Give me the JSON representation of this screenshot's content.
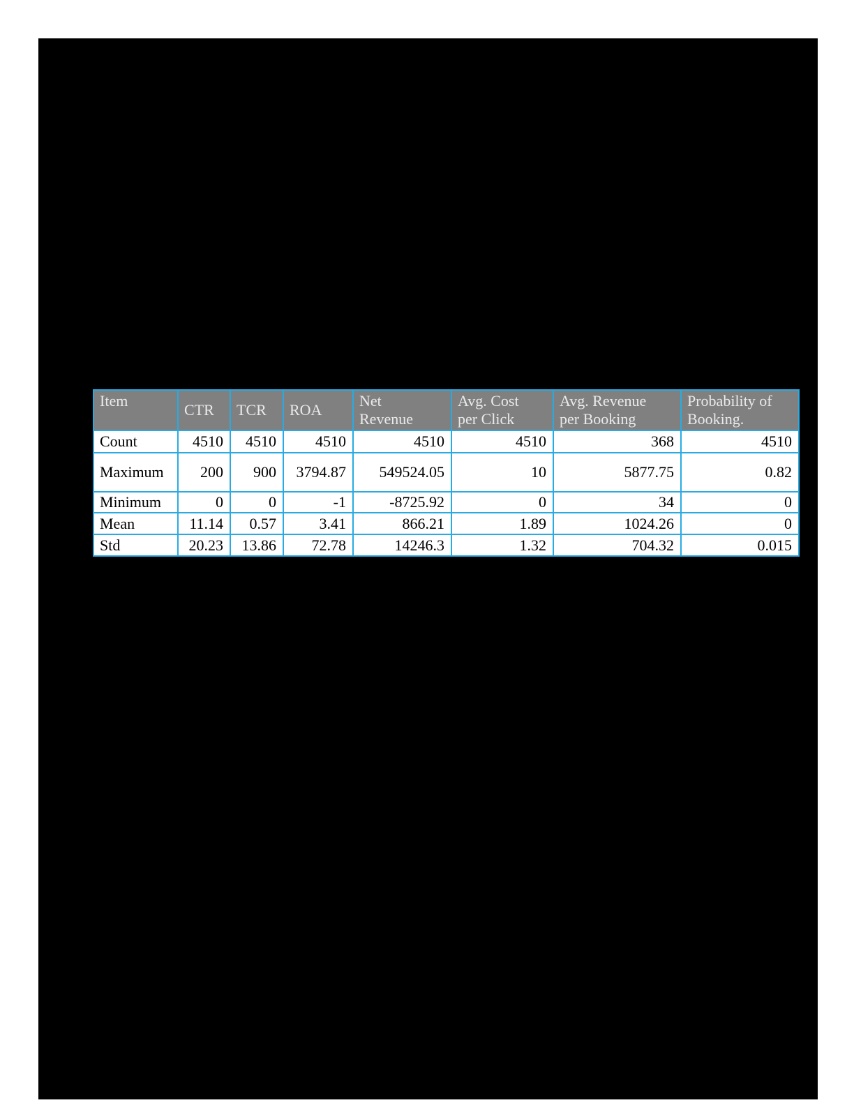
{
  "page": {
    "background_color": "#ffffff",
    "canvas_color": "#000000"
  },
  "table": {
    "border_color": "#29abe2",
    "header_bg_color": "#808080",
    "header_text_color": "#eaeaea",
    "columns": [
      "Item",
      "CTR",
      "TCR",
      "ROA",
      "Net Revenue",
      "Avg. Cost per Click",
      "Avg. Revenue per Booking",
      "Probability of Booking."
    ],
    "rows": [
      {
        "item": "Count",
        "values": [
          "4510",
          "4510",
          "4510",
          "4510",
          "4510",
          "368",
          "4510"
        ]
      },
      {
        "item": "Maximum",
        "values": [
          "200",
          "900",
          "3794.87",
          "549524.05",
          "10",
          "5877.75",
          "0.82"
        ]
      },
      {
        "item": "Minimum",
        "values": [
          "0",
          "0",
          "-1",
          "-8725.92",
          "0",
          "34",
          "0"
        ]
      },
      {
        "item": "Mean",
        "values": [
          "11.14",
          "0.57",
          "3.41",
          "866.21",
          "1.89",
          "1024.26",
          "0"
        ]
      },
      {
        "item": "Std",
        "values": [
          "20.23",
          "13.86",
          "72.78",
          "14246.3",
          "1.32",
          "704.32",
          "0.015"
        ]
      }
    ]
  }
}
